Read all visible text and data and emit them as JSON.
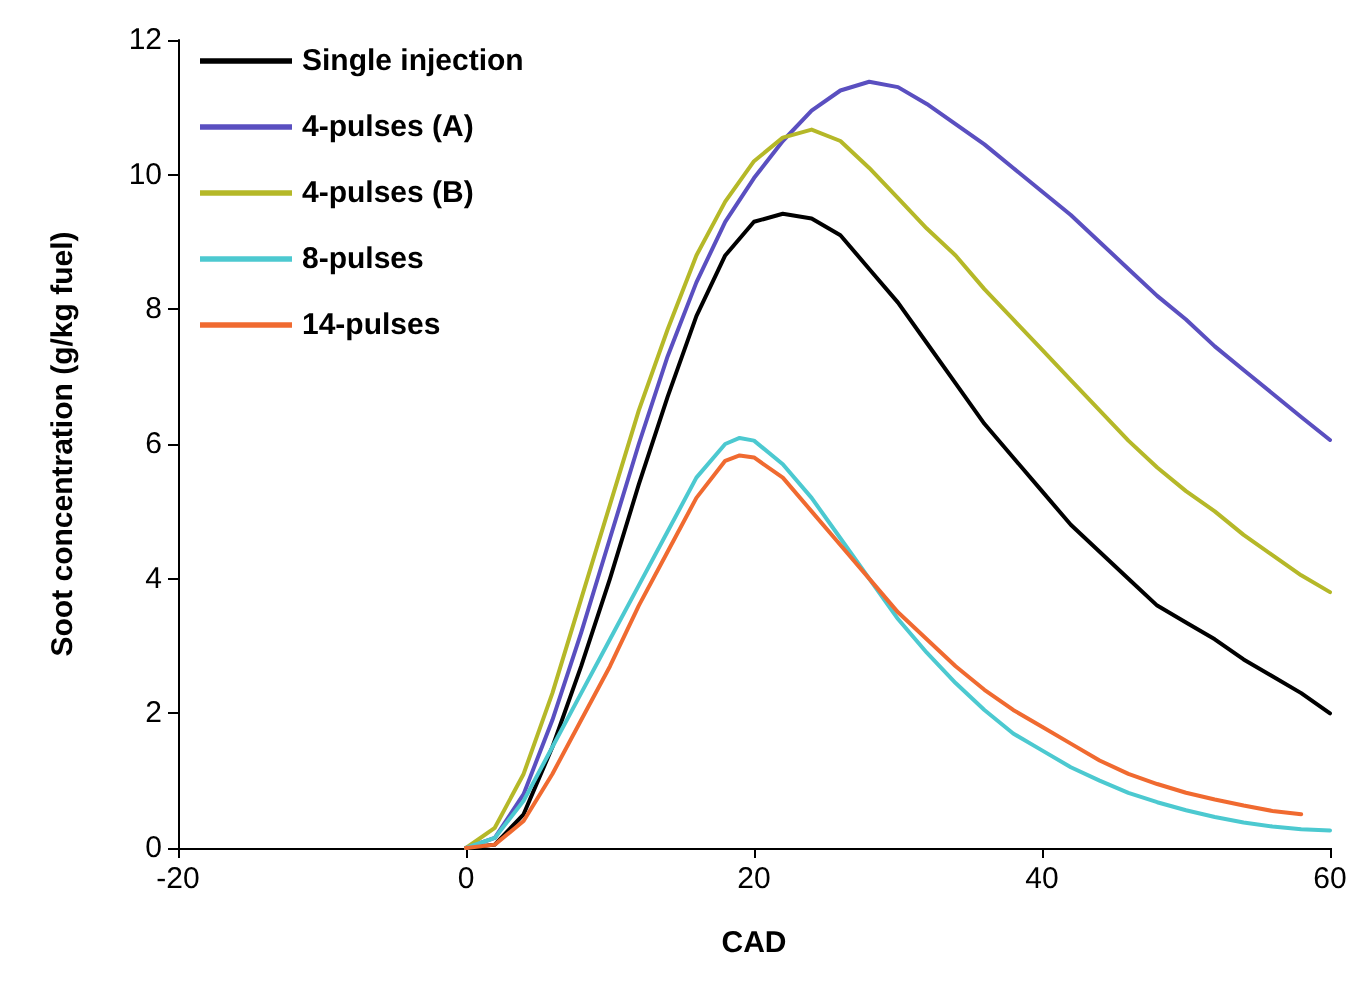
{
  "chart_data": {
    "type": "line",
    "xlabel": "CAD",
    "ylabel": "Soot concentration (g/kg fuel)",
    "xlim": [
      -20,
      60
    ],
    "xticks": [
      -20,
      0,
      20,
      40,
      60
    ],
    "ylim": [
      0,
      12
    ],
    "yticks": [
      0,
      2,
      4,
      6,
      8,
      10,
      12
    ],
    "grid": false,
    "legend": "top left",
    "marker": "none",
    "line_style": "solid",
    "x": [
      0,
      2,
      4,
      6,
      8,
      10,
      12,
      14,
      16,
      18,
      20,
      22,
      24,
      26,
      28,
      30,
      32,
      34,
      36,
      38,
      40,
      42,
      44,
      46,
      48,
      50,
      52,
      54,
      56,
      58,
      60
    ],
    "series": [
      {
        "name": "Single injection",
        "color": "#000000",
        "values": [
          0,
          0.05,
          0.5,
          1.5,
          2.7,
          4.0,
          5.4,
          6.7,
          7.9,
          8.8,
          9.3,
          9.42,
          9.35,
          9.1,
          8.6,
          8.1,
          7.5,
          6.9,
          6.3,
          5.8,
          5.3,
          4.8,
          4.4,
          4.0,
          3.6,
          3.35,
          3.1,
          2.8,
          2.55,
          2.3,
          2.0
        ]
      },
      {
        "name": "4-pulses (A)",
        "color": "#5a4fc0",
        "values": [
          0,
          0.15,
          0.8,
          1.9,
          3.2,
          4.6,
          6.0,
          7.3,
          8.4,
          9.3,
          9.95,
          10.5,
          10.95,
          11.25,
          11.38,
          11.3,
          11.05,
          10.75,
          10.45,
          10.1,
          9.75,
          9.4,
          9.0,
          8.6,
          8.2,
          7.85,
          7.45,
          7.1,
          6.75,
          6.4,
          6.06
        ]
      },
      {
        "name": "4-pulses (B)",
        "color": "#b5b828",
        "values": [
          0,
          0.3,
          1.1,
          2.3,
          3.7,
          5.1,
          6.5,
          7.7,
          8.8,
          9.6,
          10.2,
          10.55,
          10.67,
          10.5,
          10.1,
          9.65,
          9.2,
          8.8,
          8.3,
          7.85,
          7.4,
          6.95,
          6.5,
          6.05,
          5.65,
          5.3,
          5.0,
          4.65,
          4.35,
          4.05,
          3.8
        ]
      },
      {
        "name": "8-pulses",
        "color": "#4cc9d0",
        "x": [
          0,
          2,
          4,
          6,
          8,
          10,
          12,
          14,
          16,
          18,
          19,
          20,
          22,
          24,
          26,
          28,
          30,
          32,
          34,
          36,
          38,
          40,
          42,
          44,
          46,
          48,
          50,
          52,
          54,
          56,
          58,
          60
        ],
        "values": [
          0,
          0.15,
          0.7,
          1.5,
          2.3,
          3.1,
          3.9,
          4.7,
          5.5,
          6.0,
          6.09,
          6.05,
          5.7,
          5.2,
          4.6,
          4.0,
          3.4,
          2.9,
          2.45,
          2.05,
          1.7,
          1.45,
          1.2,
          1.0,
          0.82,
          0.68,
          0.56,
          0.46,
          0.38,
          0.32,
          0.28,
          0.26
        ]
      },
      {
        "name": "14-pulses",
        "color": "#f06a30",
        "x": [
          0,
          2,
          4,
          6,
          8,
          10,
          12,
          14,
          16,
          18,
          19,
          20,
          22,
          24,
          26,
          28,
          30,
          32,
          34,
          36,
          38,
          40,
          42,
          44,
          46,
          48,
          50,
          52,
          54,
          56,
          58
        ],
        "values": [
          0,
          0.05,
          0.4,
          1.1,
          1.9,
          2.7,
          3.6,
          4.4,
          5.2,
          5.75,
          5.83,
          5.8,
          5.5,
          5.0,
          4.5,
          4.0,
          3.5,
          3.1,
          2.7,
          2.35,
          2.05,
          1.8,
          1.55,
          1.3,
          1.1,
          0.95,
          0.82,
          0.72,
          0.63,
          0.55,
          0.5
        ]
      }
    ]
  }
}
